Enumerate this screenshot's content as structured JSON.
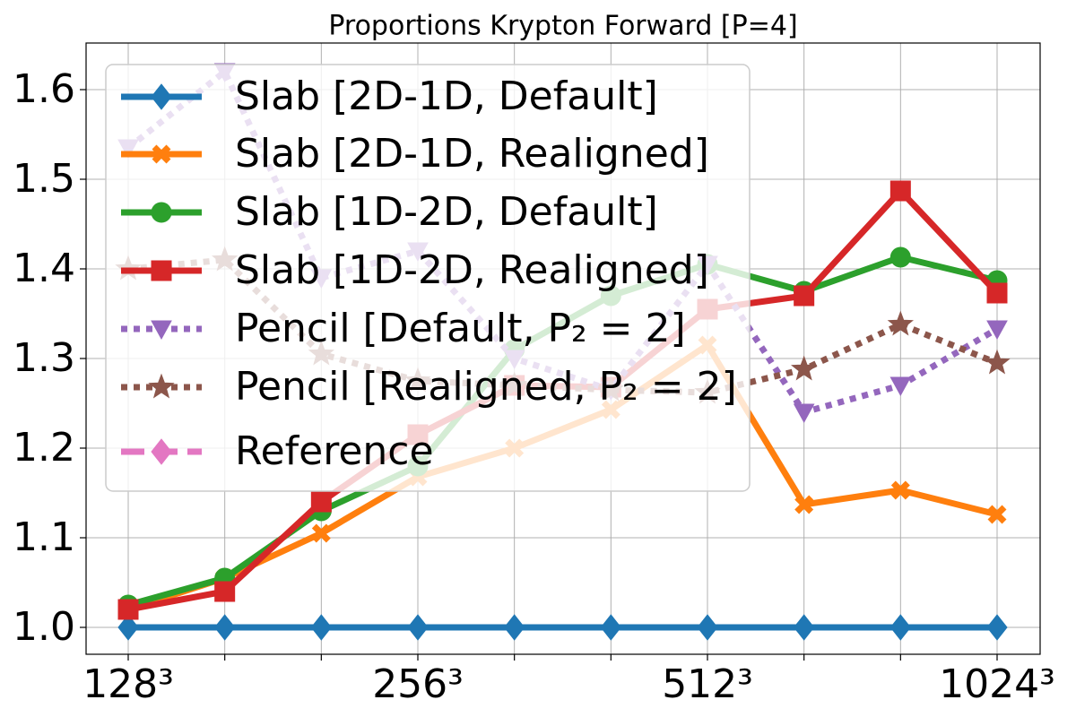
{
  "chart_data": {
    "type": "line",
    "title": "Proportions Krypton Forward [P=4]",
    "categories": [
      "128³",
      null,
      null,
      "256³",
      null,
      null,
      "512³",
      null,
      null,
      "1024³"
    ],
    "series": [
      {
        "name": "Slab [2D-1D, Default]",
        "color": "#1f77b4",
        "marker": "diamond",
        "linestyle": "solid",
        "values": [
          1.0,
          1.0,
          1.0,
          1.0,
          1.0,
          1.0,
          1.0,
          1.0,
          1.0,
          1.0
        ]
      },
      {
        "name": "Slab [2D-1D, Realigned]",
        "color": "#ff7f0e",
        "marker": "x",
        "linestyle": "solid",
        "values": [
          1.02,
          1.055,
          1.105,
          1.168,
          1.2,
          1.243,
          1.315,
          1.137,
          1.153,
          1.126
        ]
      },
      {
        "name": "Slab [1D-2D, Default]",
        "color": "#2ca02c",
        "marker": "circle",
        "linestyle": "solid",
        "values": [
          1.025,
          1.055,
          1.13,
          1.18,
          1.31,
          1.37,
          1.405,
          1.375,
          1.413,
          1.387
        ]
      },
      {
        "name": "Slab [1D-2D, Realigned]",
        "color": "#d62728",
        "marker": "square",
        "linestyle": "solid",
        "values": [
          1.02,
          1.04,
          1.14,
          1.215,
          1.27,
          1.268,
          1.355,
          1.37,
          1.487,
          1.373
        ]
      },
      {
        "name": "Pencil [Default, P₂ = 2]",
        "color": "#9467bd",
        "marker": "triangle-down",
        "linestyle": "dotted",
        "values": [
          1.535,
          1.62,
          1.39,
          1.42,
          1.3,
          1.265,
          1.405,
          1.24,
          1.27,
          1.333
        ]
      },
      {
        "name": "Pencil [Realigned, P₂ = 2]",
        "color": "#8c564b",
        "marker": "star",
        "linestyle": "dotted",
        "values": [
          1.4,
          1.41,
          1.305,
          1.275,
          1.27,
          1.265,
          1.262,
          1.288,
          1.338,
          1.295
        ]
      },
      {
        "name": "Reference",
        "color": "#e377c2",
        "marker": "diamond",
        "linestyle": "dashed",
        "values": [
          null,
          null,
          null,
          null,
          null,
          null,
          null,
          null,
          null,
          null
        ]
      }
    ],
    "ylim": [
      0.97,
      1.652
    ],
    "yticks": [
      {
        "value": 1.0,
        "label": "1.0"
      },
      1.1,
      1.2,
      1.3,
      1.4,
      1.5,
      1.6
    ],
    "grid": true,
    "legend": "upper left"
  }
}
